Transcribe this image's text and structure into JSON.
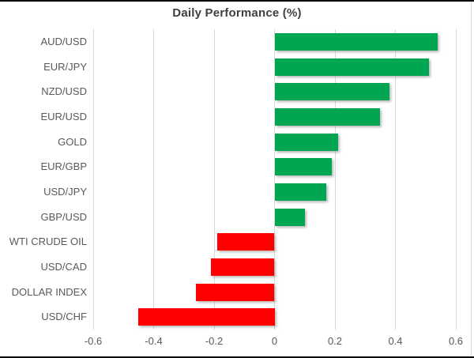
{
  "chart_data": {
    "type": "bar",
    "orientation": "horizontal",
    "title": "Daily Performance (%)",
    "categories": [
      "AUD/USD",
      "EUR/JPY",
      "NZD/USD",
      "EUR/USD",
      "GOLD",
      "EUR/GBP",
      "USD/JPY",
      "GBP/USD",
      "WTI CRUDE OIL",
      "USD/CAD",
      "DOLLAR INDEX",
      "USD/CHF"
    ],
    "values": [
      0.54,
      0.51,
      0.38,
      0.35,
      0.21,
      0.19,
      0.17,
      0.1,
      -0.19,
      -0.21,
      -0.26,
      -0.45
    ],
    "xlim": [
      -0.6,
      0.6
    ],
    "x_ticks": [
      -0.6,
      -0.4,
      -0.2,
      0,
      0.2,
      0.4,
      0.6
    ],
    "x_tick_labels": [
      "-0.6",
      "-0.4",
      "-0.2",
      "0",
      "0.2",
      "0.4",
      "0.6"
    ],
    "grid": "vertical-on",
    "legend": "none",
    "colors": {
      "positive": "#00a651",
      "negative": "#ff0000",
      "gridline": "#d9d9d9",
      "axis_text": "#595959",
      "title_text": "#3f3f3f",
      "frame_border": "#000000"
    }
  }
}
